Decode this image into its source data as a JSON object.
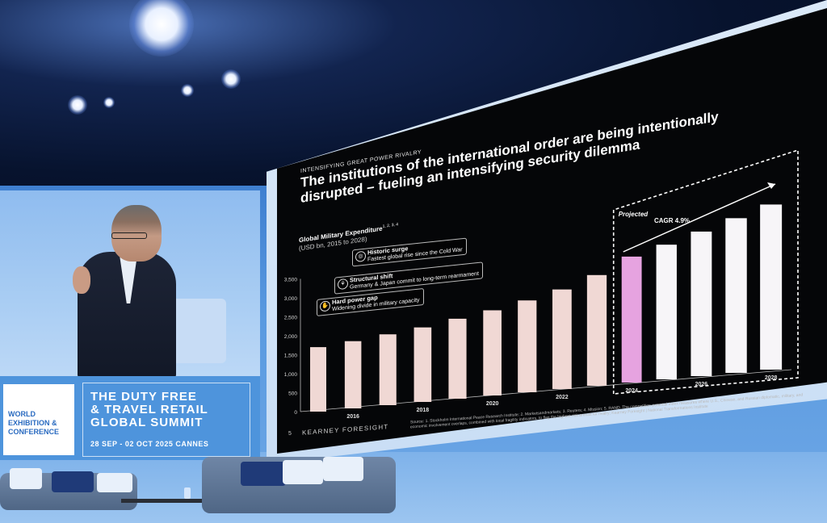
{
  "summit": {
    "logo_text": "WORLD\nEXHIBITION &\nCONFERENCE",
    "title": "THE DUTY FREE\n& TRAVEL RETAIL\nGLOBAL SUMMIT",
    "dates": "28 SEP - 02 OCT 2025 CANNES"
  },
  "slide": {
    "kicker": "INTENSIFYING GREAT POWER RIVALRY",
    "headline": "The institutions of the international order are being intentionally disrupted – fueling an intensifying security dilemma",
    "caption_title": "Global Military Expenditure",
    "caption_sup": "1, 2, 3, 4",
    "caption_sub": "(USD bn, 2015 to 2028)",
    "callouts": [
      {
        "title": "Historic surge",
        "text": "Fastest global rise since the Cold War",
        "icon": "globe-icon"
      },
      {
        "title": "Structural shift",
        "text": "Germany & Japan commit to long-term rearmament",
        "icon": "network-icon"
      },
      {
        "title": "Hard power gap",
        "text": "Widening divide in military capacity",
        "icon": "hand-icon"
      }
    ],
    "projected_label": "Projected",
    "cagr_label": "CAGR 4.9%",
    "footer_logo": "KEARNEY FORESIGHT",
    "page_number": "5",
    "source": "Source: 1. Stockholm International Peace Research Institute; 2. Marketsandmarkets; 3. Reuters; 4. Mission; 5. RAND. The competition-potential index measures where U.S., Chinese, and Russian diplomatic, military, and economic involvement overlaps, combined with local fragility indicators, to flag the highest-risk arenas for rivalry; Kearney Foresight | National Transformations Institute"
  },
  "chart_data": {
    "type": "bar",
    "title": "Global Military Expenditure",
    "subtitle": "(USD bn, 2015 to 2028)",
    "categories": [
      "2015",
      "2016",
      "2017",
      "2018",
      "2019",
      "2020",
      "2021",
      "2022",
      "2023",
      "2024",
      "2025",
      "2026",
      "2027",
      "2028"
    ],
    "x_tick_labels": [
      "2016",
      "2018",
      "2020",
      "2022",
      "2024",
      "2026",
      "2028"
    ],
    "values": [
      1700,
      1730,
      1780,
      1830,
      1920,
      2000,
      2110,
      2240,
      2440,
      2720,
      2850,
      3000,
      3150,
      3300
    ],
    "projected_from": "2024",
    "ylim": [
      0,
      3500
    ],
    "yticks": [
      "0",
      "500",
      "1,000",
      "1,500",
      "2,000",
      "2,500",
      "3,000",
      "3,500"
    ],
    "colors": {
      "historic": "#f0d8d4",
      "highlight": "#e6a3e0",
      "projected": "#f7f5f8"
    }
  },
  "colors": {
    "stage_blue": "#4e94dc",
    "screen_black": "#050608"
  }
}
